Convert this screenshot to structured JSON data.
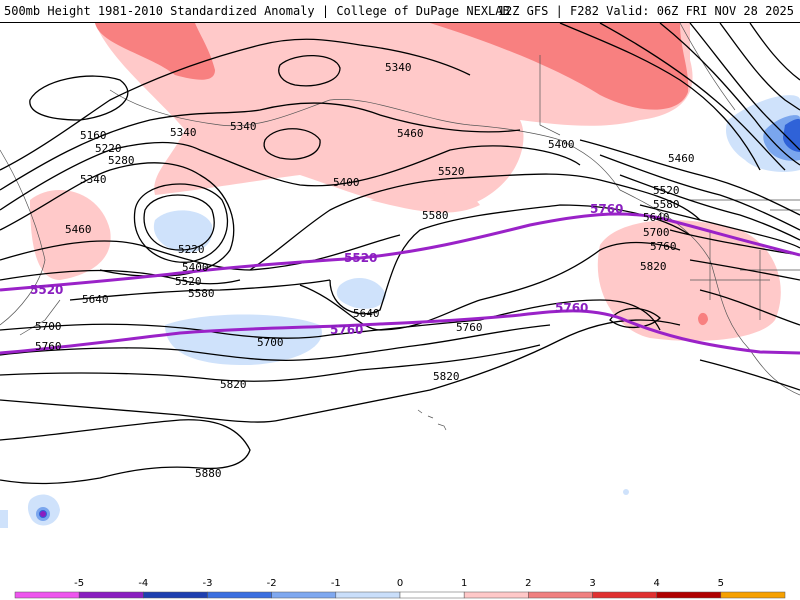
{
  "header": {
    "left": "500mb Height 1981-2010 Standardized Anomaly | College of DuPage NEXLAB",
    "right": "12Z GFS | F282 Valid: 06Z FRI NOV 28 2025"
  },
  "contour_labels": [
    "5160",
    "5220",
    "5280",
    "5340",
    "5340",
    "5340",
    "5460",
    "5220",
    "5400",
    "5520",
    "5580",
    "5640",
    "5700",
    "5760",
    "5820",
    "5880",
    "5340",
    "5400",
    "5460",
    "5520",
    "5580",
    "5640",
    "5700",
    "5760",
    "5820",
    "5400",
    "5460",
    "5520",
    "5580",
    "5640",
    "5700",
    "5760",
    "5820"
  ],
  "climo_labels": [
    "5520",
    "5520",
    "5760",
    "5760"
  ],
  "colorbar": {
    "ticks": [
      "-5",
      "-4",
      "-3",
      "-2",
      "-1",
      "0",
      "1",
      "2",
      "3",
      "4",
      "5"
    ],
    "colors": [
      "#ee55ee",
      "#8a1fc0",
      "#1e3fb0",
      "#3b6fe0",
      "#7fa8ef",
      "#c9defa",
      "#ffffff",
      "#ffc8c8",
      "#f08080",
      "#e03030",
      "#b00000",
      "#f6a000",
      "#fdd835"
    ]
  },
  "colors": {
    "positive_light": "#ffc9c9",
    "positive_mid": "#f88080",
    "negative_light": "#cfe2fb",
    "negative_mid": "#7aa6ee",
    "negative_dark": "#2f62d8",
    "climo_line": "#9a22c8"
  }
}
